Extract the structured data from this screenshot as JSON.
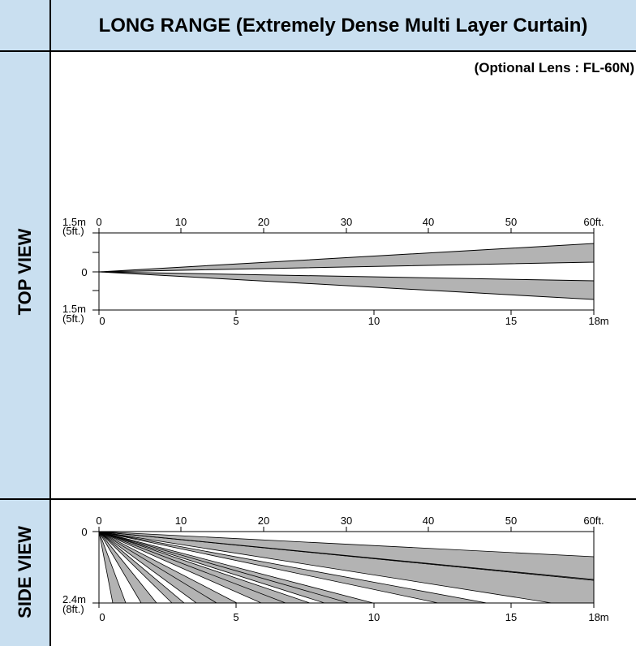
{
  "title": "LONG RANGE (Extremely Dense Multi Layer Curtain)",
  "lens_note": "(Optional Lens : FL-60N)",
  "top_view": {
    "label": "TOP VIEW",
    "ft_ticks": [
      "0",
      "10",
      "20",
      "30",
      "40",
      "50",
      "60ft."
    ],
    "m_ticks": [
      "0",
      "5",
      "10",
      "15",
      "18m"
    ],
    "y_top_m": "1.5m",
    "y_top_ft": "(5ft.)",
    "y_center": "0",
    "y_bottom_m": "1.5m",
    "y_bottom_ft": "(5ft.)"
  },
  "side_view": {
    "label": "SIDE VIEW",
    "ft_ticks": [
      "0",
      "10",
      "20",
      "30",
      "40",
      "50",
      "60ft."
    ],
    "m_ticks": [
      "0",
      "5",
      "10",
      "15",
      "18m"
    ],
    "y_top": "0",
    "y_bottom_m": "2.4m",
    "y_bottom_ft": "(8ft.)"
  },
  "colors": {
    "panel_bg": "#c9dff0",
    "beam_fill": "#b3b3b3",
    "line": "#000000"
  }
}
